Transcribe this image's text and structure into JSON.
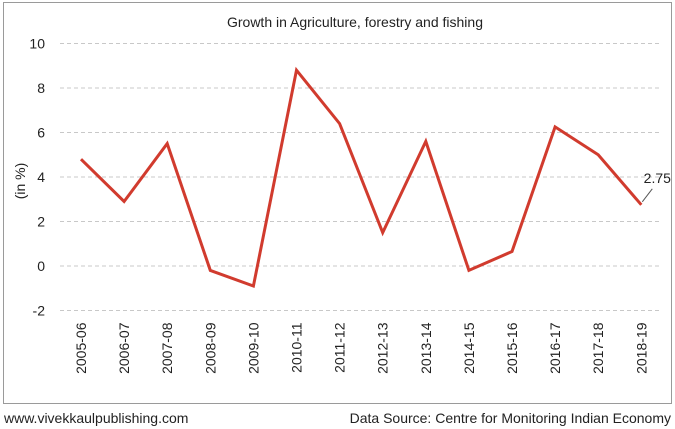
{
  "chart_data": {
    "type": "line",
    "title": "Growth in Agriculture, forestry and fishing",
    "xlabel": "",
    "ylabel": "(in %)",
    "categories": [
      "2005-06",
      "2006-07",
      "2007-08",
      "2008-09",
      "2009-10",
      "2010-11",
      "2011-12",
      "2012-13",
      "2013-14",
      "2014-15",
      "2015-16",
      "2016-17",
      "2017-18",
      "2018-19"
    ],
    "series": [
      {
        "values": [
          4.8,
          2.9,
          5.5,
          -0.2,
          -0.9,
          8.8,
          6.4,
          1.5,
          5.6,
          -0.2,
          0.65,
          6.25,
          5.0,
          2.75
        ]
      }
    ],
    "ylim": [
      -2,
      10
    ],
    "yticks": [
      -2,
      0,
      2,
      4,
      6,
      8,
      10
    ],
    "grid": "horizontal-dashed",
    "line_color": "#d13b2e",
    "annotation": {
      "text": "2.75",
      "category": "2018-19",
      "value": 2.75
    }
  },
  "footer": {
    "left": "www.vivekkaulpublishing.com",
    "right": "Data Source: Centre for Monitoring Indian Economy"
  }
}
